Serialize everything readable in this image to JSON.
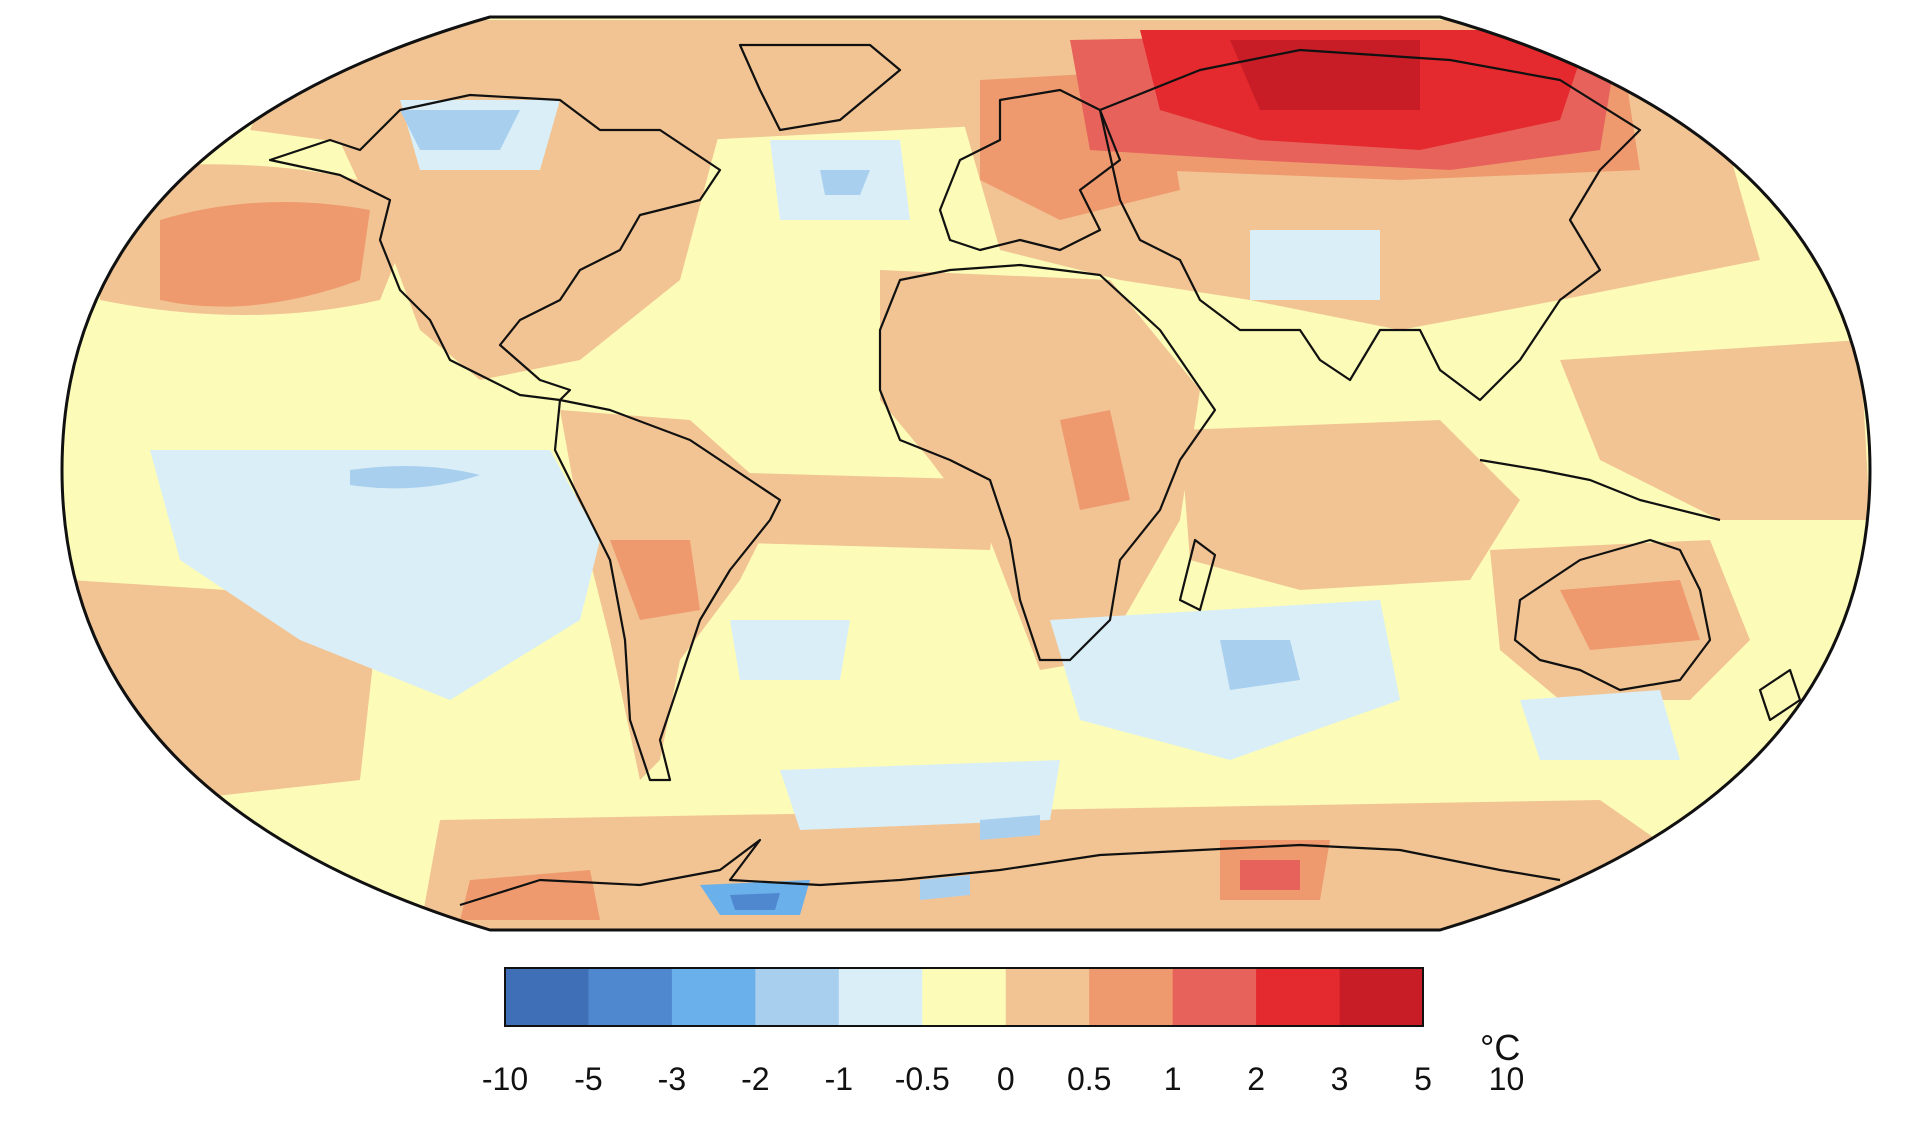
{
  "legend": {
    "unit": "°C",
    "ticks": [
      "-10",
      "-5",
      "-3",
      "-2",
      "-1",
      "-0.5",
      "0",
      "0.5",
      "1",
      "2",
      "3",
      "5",
      "10"
    ],
    "colors": [
      "#3f6fb6",
      "#4f88cf",
      "#6ab0ea",
      "#a9cfef",
      "#d9eef6",
      "#fcfcb8",
      "#f2c493",
      "#ee9a6e",
      "#e6625b",
      "#e42a2e",
      "#c81d26"
    ]
  },
  "colors": {
    "ocean_background": "#fcfcb8",
    "frame_stroke": "#111111",
    "coastline_stroke": "#111111"
  }
}
